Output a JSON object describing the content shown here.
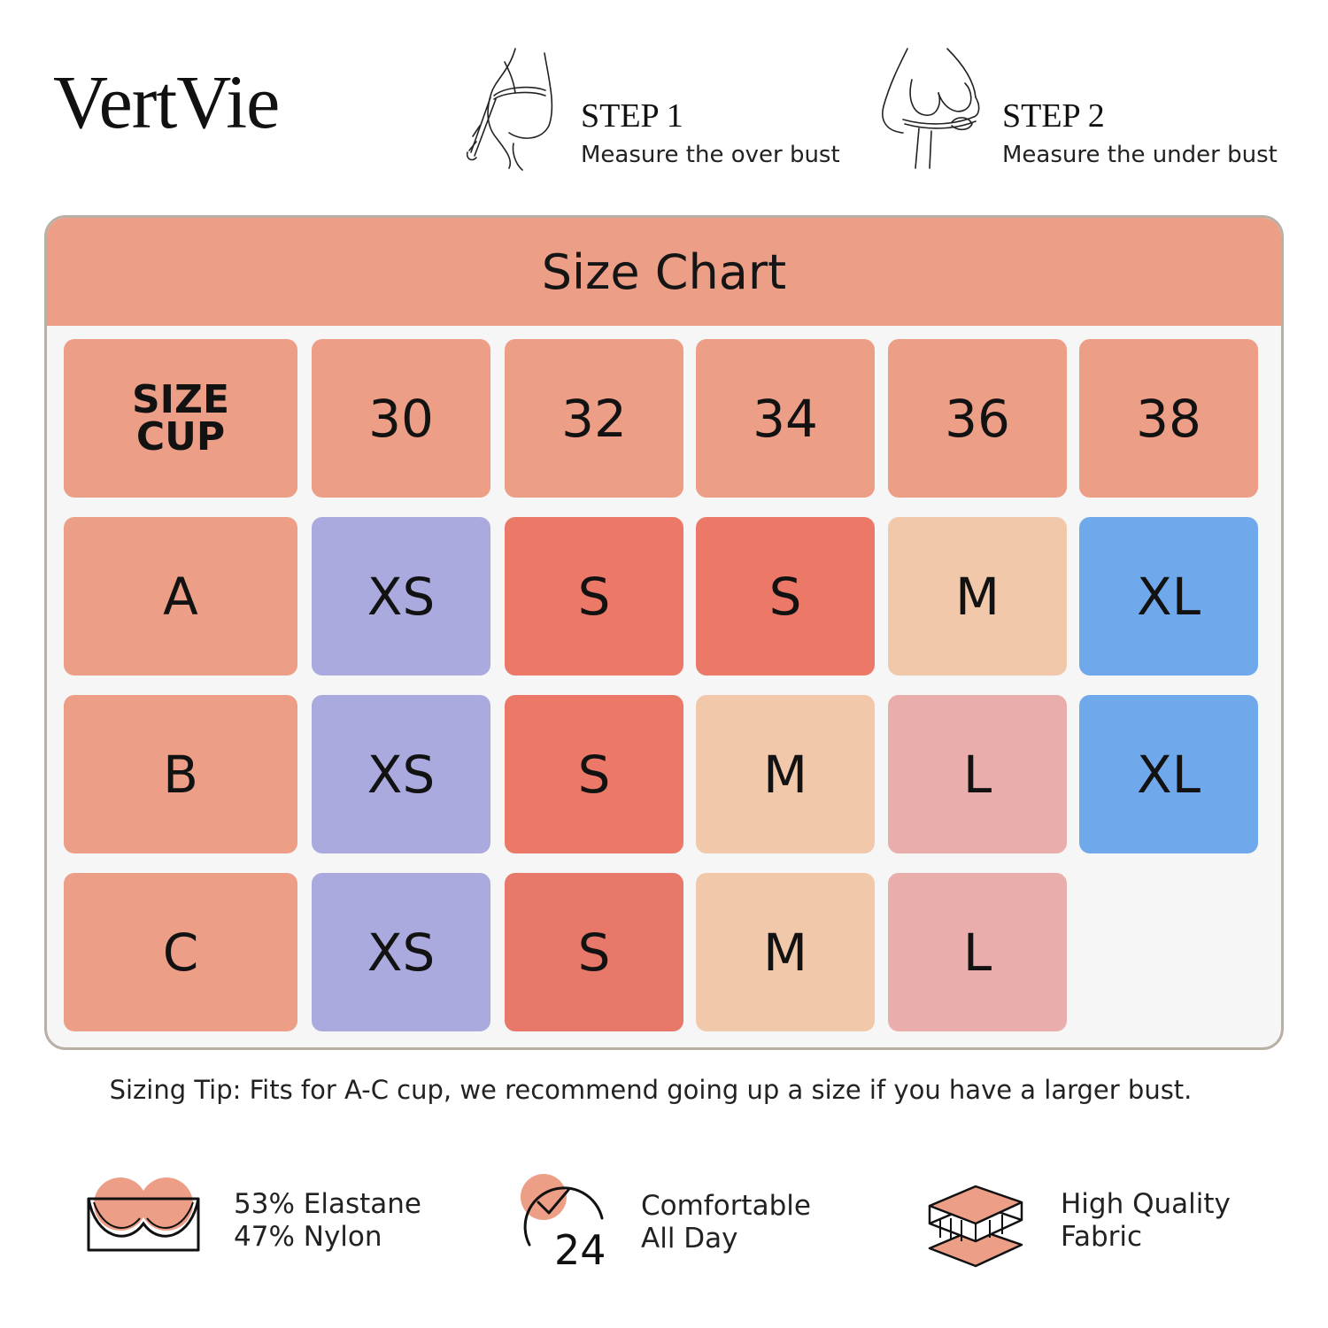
{
  "brand": {
    "logo_text": "VertVie"
  },
  "steps": [
    {
      "title": "STEP 1",
      "description": "Measure the over bust",
      "icon": "over-bust-measure-icon"
    },
    {
      "title": "STEP 2",
      "description": "Measure the under bust",
      "icon": "under-bust-measure-icon"
    }
  ],
  "size_chart": {
    "title": "Size Chart",
    "corner": {
      "line1": "SIZE",
      "line2": "CUP"
    },
    "band_sizes": [
      "30",
      "32",
      "34",
      "36",
      "38"
    ],
    "rows": [
      {
        "cup": "A",
        "sizes": [
          "XS",
          "S",
          "S",
          "M",
          "XL"
        ]
      },
      {
        "cup": "B",
        "sizes": [
          "XS",
          "S",
          "M",
          "L",
          "XL"
        ]
      },
      {
        "cup": "C",
        "sizes": [
          "XS",
          "S",
          "M",
          "L"
        ]
      }
    ],
    "colors": {
      "header": "#ec9e86",
      "XS": "#aaaadf",
      "S": "#ec7968",
      "M": "#f2c8aa",
      "L": "#e9adac",
      "XL": "#6fa9eb",
      "border": "#b9b0a5"
    }
  },
  "tip": "Sizing Tip: Fits for A-C cup, we recommend going up a size if you have a larger bust.",
  "features": [
    {
      "icon": "bra-cups-icon",
      "line1": "53% Elastane",
      "line2": "47% Nylon"
    },
    {
      "icon": "clock-24-icon",
      "line1": "Comfortable",
      "line2": "All Day"
    },
    {
      "icon": "fabric-layers-icon",
      "line1": "High Quality",
      "line2": "Fabric"
    }
  ]
}
